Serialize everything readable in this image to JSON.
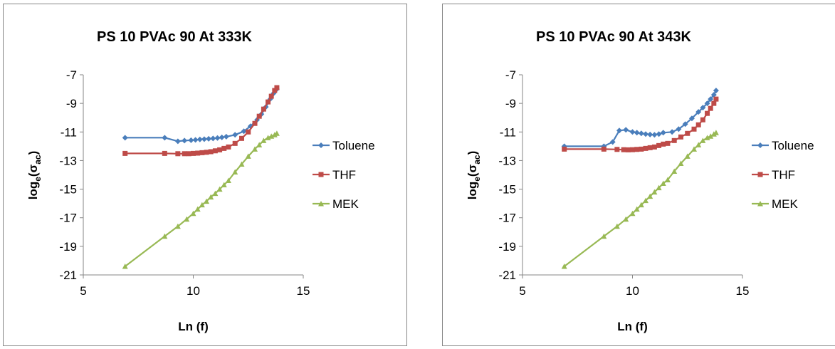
{
  "chart_data": [
    {
      "type": "line",
      "title": "PS 10 PVAc 90 At 333K",
      "xlabel": "Ln (f)",
      "ylabel_main": "log",
      "ylabel_sub1": "e",
      "ylabel_paren_open": "(σ",
      "ylabel_sub2": "ac",
      "ylabel_paren_close": ")",
      "xlim": [
        5,
        15
      ],
      "ylim": [
        -21,
        -7
      ],
      "xticks": [
        5,
        10,
        15
      ],
      "yticks": [
        -7,
        -9,
        -11,
        -13,
        -15,
        -17,
        -19,
        -21
      ],
      "grid": false,
      "legend": "right",
      "series": [
        {
          "name": "Toluene",
          "color": "#4a7ebb",
          "marker": "diamond",
          "x": [
            6.9,
            8.7,
            9.3,
            9.6,
            9.9,
            10.1,
            10.3,
            10.5,
            10.7,
            10.9,
            11.1,
            11.3,
            11.5,
            11.9,
            12.3,
            12.6,
            12.9,
            13.1,
            13.3,
            13.5,
            13.65,
            13.8
          ],
          "y": [
            -11.4,
            -11.4,
            -11.65,
            -11.6,
            -11.58,
            -11.55,
            -11.52,
            -11.5,
            -11.48,
            -11.45,
            -11.42,
            -11.38,
            -11.33,
            -11.2,
            -10.95,
            -10.6,
            -10.15,
            -9.75,
            -9.25,
            -8.7,
            -8.3,
            -8.0
          ]
        },
        {
          "name": "THF",
          "color": "#be4b48",
          "marker": "square",
          "x": [
            6.9,
            8.7,
            9.3,
            9.6,
            9.8,
            10.0,
            10.2,
            10.4,
            10.6,
            10.8,
            11.0,
            11.2,
            11.4,
            11.6,
            11.9,
            12.2,
            12.5,
            12.8,
            13.0,
            13.2,
            13.4,
            13.55,
            13.7,
            13.8
          ],
          "y": [
            -12.5,
            -12.5,
            -12.52,
            -12.52,
            -12.52,
            -12.5,
            -12.48,
            -12.45,
            -12.42,
            -12.38,
            -12.32,
            -12.25,
            -12.15,
            -12.05,
            -11.8,
            -11.45,
            -11.0,
            -10.4,
            -9.9,
            -9.4,
            -8.9,
            -8.5,
            -8.1,
            -7.9
          ]
        },
        {
          "name": "MEK",
          "color": "#98b954",
          "marker": "triangle",
          "x": [
            6.9,
            8.7,
            9.3,
            9.7,
            10.0,
            10.2,
            10.4,
            10.6,
            10.8,
            11.0,
            11.2,
            11.4,
            11.6,
            11.9,
            12.2,
            12.5,
            12.8,
            13.0,
            13.2,
            13.4,
            13.55,
            13.7,
            13.8
          ],
          "y": [
            -20.4,
            -18.3,
            -17.6,
            -17.1,
            -16.7,
            -16.4,
            -16.1,
            -15.85,
            -15.55,
            -15.3,
            -15.0,
            -14.7,
            -14.4,
            -13.8,
            -13.25,
            -12.7,
            -12.2,
            -11.9,
            -11.6,
            -11.4,
            -11.3,
            -11.2,
            -11.1
          ]
        }
      ]
    },
    {
      "type": "line",
      "title": "PS 10 PVAc 90 At 343K",
      "xlabel": "Ln (f)",
      "ylabel_main": "log",
      "ylabel_sub1": "e",
      "ylabel_paren_open": "(σ",
      "ylabel_sub2": "ac",
      "ylabel_paren_close": ")",
      "xlim": [
        5,
        15
      ],
      "ylim": [
        -21,
        -7
      ],
      "xticks": [
        5,
        10,
        15
      ],
      "yticks": [
        -7,
        -9,
        -11,
        -13,
        -15,
        -17,
        -19,
        -21
      ],
      "grid": false,
      "legend": "right",
      "series": [
        {
          "name": "Toluene",
          "color": "#4a7ebb",
          "marker": "diamond",
          "x": [
            6.9,
            8.7,
            9.1,
            9.4,
            9.7,
            10.0,
            10.2,
            10.4,
            10.6,
            10.8,
            11.0,
            11.2,
            11.4,
            11.8,
            12.1,
            12.4,
            12.7,
            13.0,
            13.2,
            13.4,
            13.55,
            13.7,
            13.8
          ],
          "y": [
            -12.0,
            -12.0,
            -11.7,
            -10.9,
            -10.85,
            -11.0,
            -11.05,
            -11.1,
            -11.15,
            -11.18,
            -11.2,
            -11.15,
            -11.05,
            -11.0,
            -10.8,
            -10.45,
            -10.05,
            -9.6,
            -9.3,
            -9.0,
            -8.7,
            -8.4,
            -8.1
          ]
        },
        {
          "name": "THF",
          "color": "#be4b48",
          "marker": "square",
          "x": [
            6.9,
            8.7,
            9.3,
            9.6,
            9.8,
            10.0,
            10.2,
            10.4,
            10.6,
            10.8,
            11.0,
            11.2,
            11.4,
            11.6,
            11.9,
            12.2,
            12.5,
            12.8,
            13.0,
            13.2,
            13.4,
            13.55,
            13.7,
            13.8
          ],
          "y": [
            -12.2,
            -12.2,
            -12.22,
            -12.24,
            -12.25,
            -12.24,
            -12.22,
            -12.2,
            -12.15,
            -12.1,
            -12.05,
            -11.95,
            -11.85,
            -11.8,
            -11.6,
            -11.35,
            -11.1,
            -10.8,
            -10.5,
            -10.15,
            -9.7,
            -9.35,
            -9.0,
            -8.7
          ]
        },
        {
          "name": "MEK",
          "color": "#98b954",
          "marker": "triangle",
          "x": [
            6.9,
            8.7,
            9.3,
            9.7,
            10.0,
            10.2,
            10.4,
            10.6,
            10.8,
            11.0,
            11.2,
            11.4,
            11.6,
            11.9,
            12.2,
            12.5,
            12.8,
            13.0,
            13.2,
            13.4,
            13.55,
            13.7,
            13.8
          ],
          "y": [
            -20.4,
            -18.3,
            -17.6,
            -17.1,
            -16.7,
            -16.4,
            -16.1,
            -15.8,
            -15.5,
            -15.2,
            -14.9,
            -14.6,
            -14.35,
            -13.75,
            -13.2,
            -12.7,
            -12.2,
            -11.9,
            -11.6,
            -11.4,
            -11.3,
            -11.15,
            -11.05
          ]
        }
      ]
    }
  ]
}
